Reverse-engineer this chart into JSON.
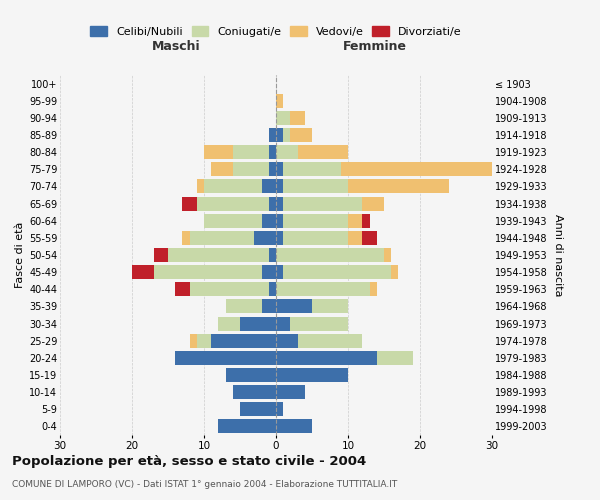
{
  "age_groups": [
    "0-4",
    "5-9",
    "10-14",
    "15-19",
    "20-24",
    "25-29",
    "30-34",
    "35-39",
    "40-44",
    "45-49",
    "50-54",
    "55-59",
    "60-64",
    "65-69",
    "70-74",
    "75-79",
    "80-84",
    "85-89",
    "90-94",
    "95-99",
    "100+"
  ],
  "birth_years": [
    "1999-2003",
    "1994-1998",
    "1989-1993",
    "1984-1988",
    "1979-1983",
    "1974-1978",
    "1969-1973",
    "1964-1968",
    "1959-1963",
    "1954-1958",
    "1949-1953",
    "1944-1948",
    "1939-1943",
    "1934-1938",
    "1929-1933",
    "1924-1928",
    "1919-1923",
    "1914-1918",
    "1909-1913",
    "1904-1908",
    "≤ 1903"
  ],
  "colors": {
    "celibe": "#3d6faa",
    "coniugato": "#c8d9a8",
    "vedovo": "#f0c070",
    "divorziato": "#c0202a"
  },
  "maschi": {
    "celibe": [
      8,
      5,
      6,
      7,
      14,
      9,
      5,
      2,
      1,
      2,
      1,
      3,
      2,
      1,
      2,
      1,
      1,
      1,
      0,
      0,
      0
    ],
    "coniugato": [
      0,
      0,
      0,
      0,
      0,
      2,
      3,
      5,
      11,
      15,
      14,
      9,
      8,
      10,
      8,
      5,
      5,
      0,
      0,
      0,
      0
    ],
    "vedovo": [
      0,
      0,
      0,
      0,
      0,
      1,
      0,
      0,
      0,
      0,
      0,
      1,
      0,
      0,
      1,
      3,
      4,
      0,
      0,
      0,
      0
    ],
    "divorziato": [
      0,
      0,
      0,
      0,
      0,
      0,
      0,
      0,
      2,
      3,
      2,
      0,
      0,
      2,
      0,
      0,
      0,
      0,
      0,
      0,
      0
    ]
  },
  "femmine": {
    "nubile": [
      5,
      1,
      4,
      10,
      14,
      3,
      2,
      5,
      0,
      1,
      0,
      1,
      1,
      1,
      1,
      1,
      0,
      1,
      0,
      0,
      0
    ],
    "coniugata": [
      0,
      0,
      0,
      0,
      5,
      9,
      8,
      5,
      13,
      15,
      15,
      9,
      9,
      11,
      9,
      8,
      3,
      1,
      2,
      0,
      0
    ],
    "vedova": [
      0,
      0,
      0,
      0,
      0,
      0,
      0,
      0,
      1,
      1,
      1,
      2,
      2,
      3,
      14,
      21,
      7,
      3,
      2,
      1,
      0
    ],
    "divorziata": [
      0,
      0,
      0,
      0,
      0,
      0,
      0,
      0,
      0,
      0,
      0,
      2,
      1,
      0,
      0,
      0,
      0,
      0,
      0,
      0,
      0
    ]
  },
  "title": "Popolazione per età, sesso e stato civile - 2004",
  "subtitle": "COMUNE DI LAMPORO (VC) - Dati ISTAT 1° gennaio 2004 - Elaborazione TUTTITALIA.IT",
  "xlabel_left": "Maschi",
  "xlabel_right": "Femmine",
  "ylabel": "Fasce di età",
  "ylabel_right": "Anni di nascita",
  "xlim": 30,
  "legend_labels": [
    "Celibi/Nubili",
    "Coniugati/e",
    "Vedovi/e",
    "Divorziati/e"
  ],
  "background_color": "#f5f5f5"
}
